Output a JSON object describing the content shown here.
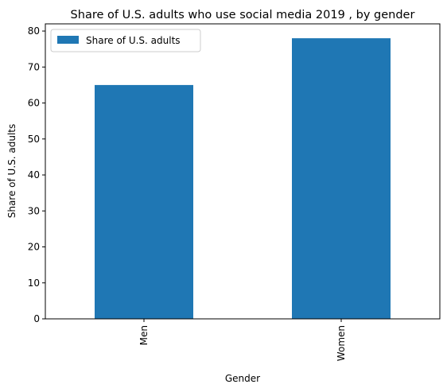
{
  "chart_data": {
    "type": "bar",
    "title": "Share of U.S. adults who use social media 2019 , by gender",
    "xlabel": "Gender",
    "ylabel": "Share of U.S. adults",
    "categories": [
      "Men",
      "Women"
    ],
    "series": [
      {
        "name": "Share of U.S. adults",
        "values": [
          65,
          78
        ],
        "color": "#1f77b4"
      }
    ],
    "ylim": [
      0,
      82
    ],
    "yticks": [
      0,
      10,
      20,
      30,
      40,
      50,
      60,
      70,
      80
    ],
    "grid": false,
    "legend": "top-left"
  }
}
